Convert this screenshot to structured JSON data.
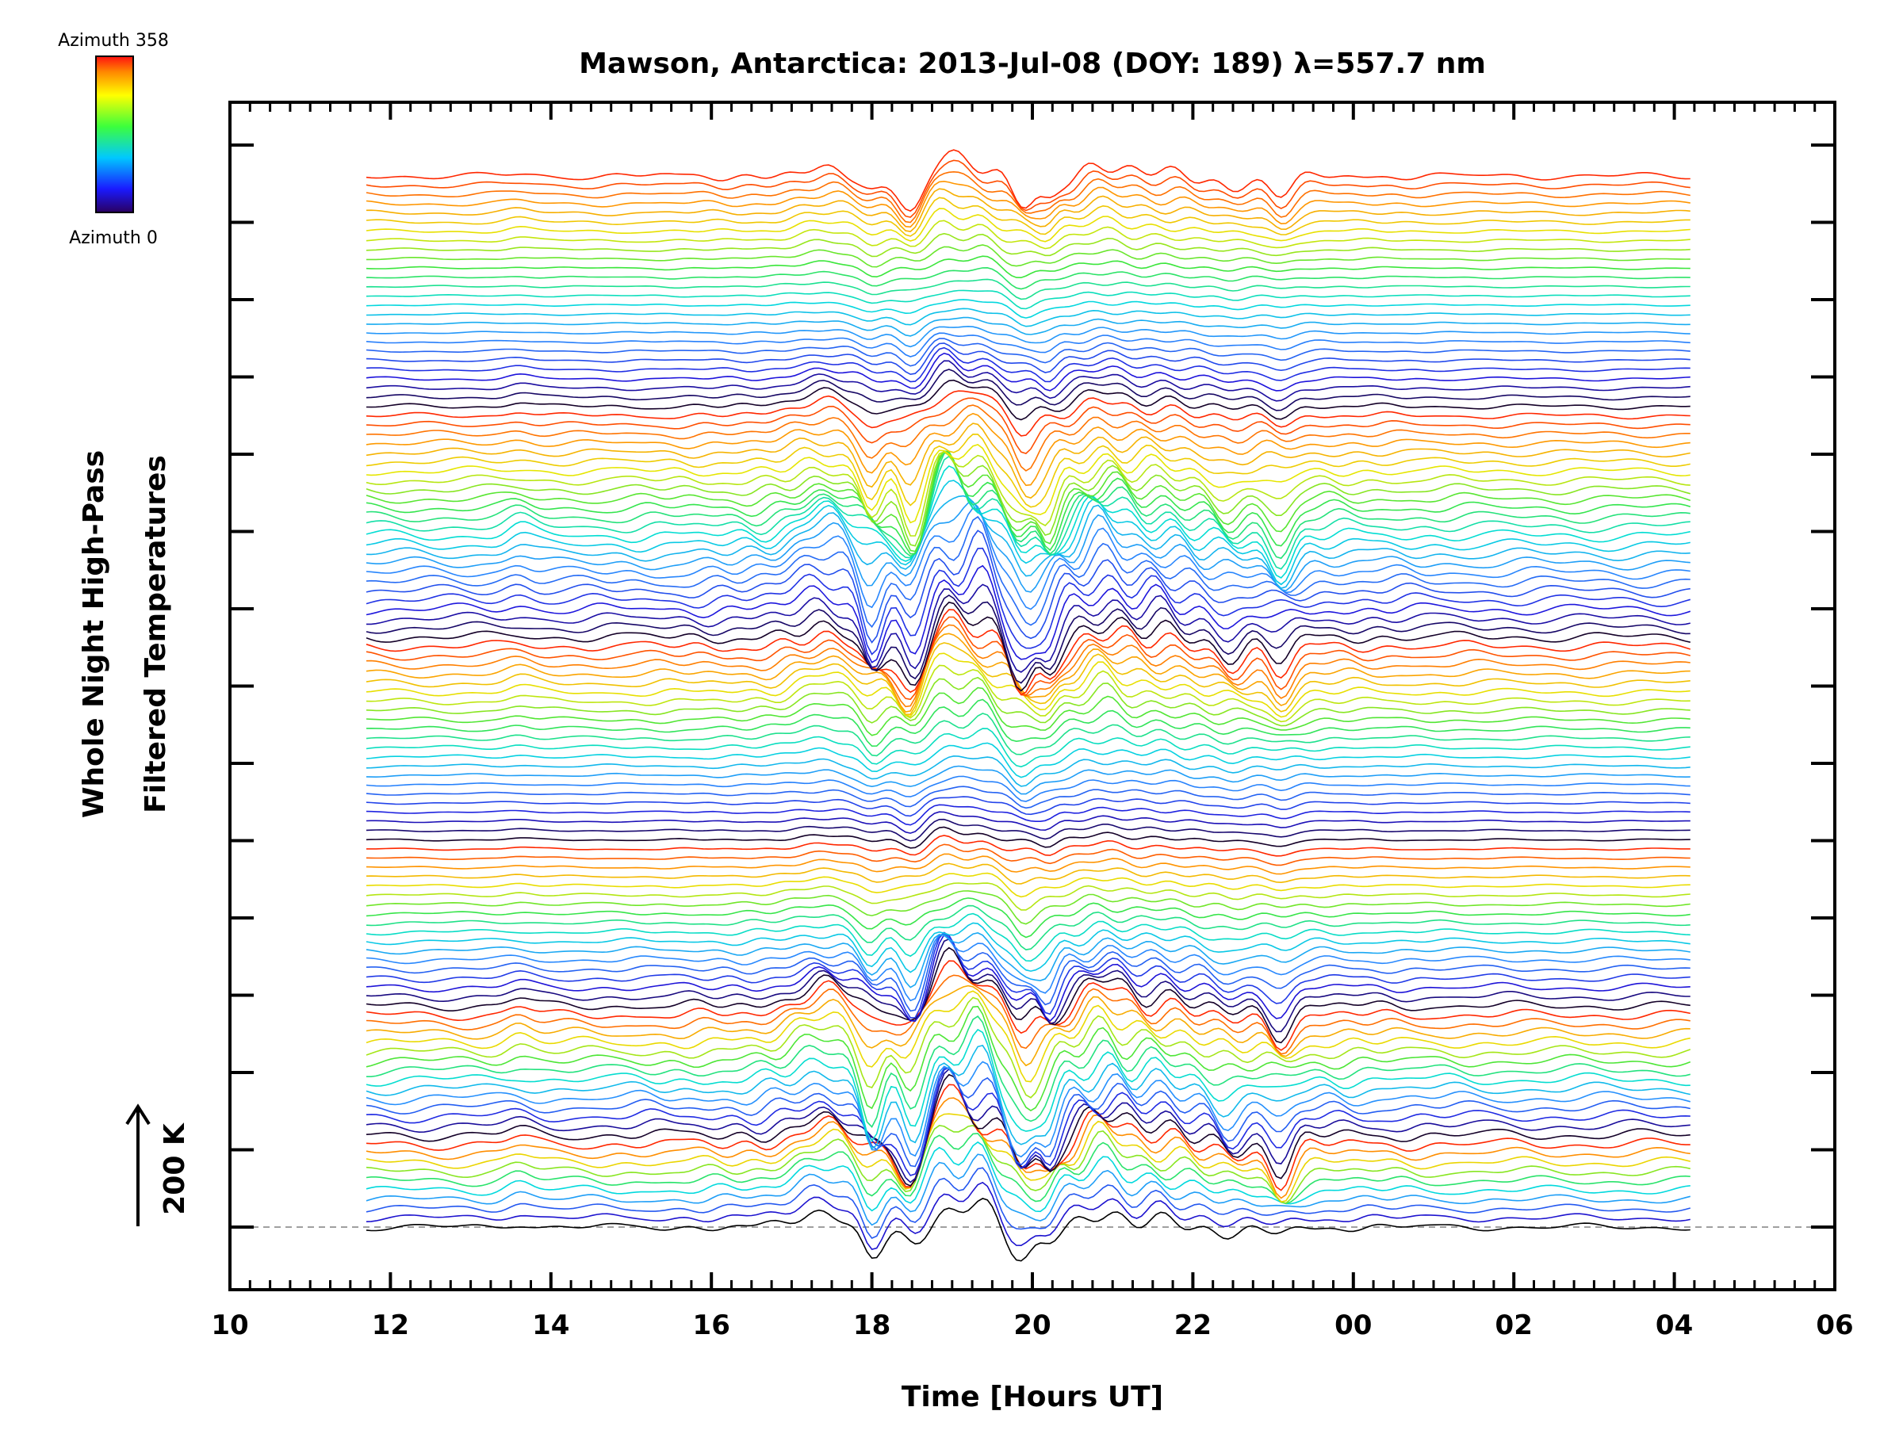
{
  "chart_data": {
    "type": "line",
    "title": "Mawson, Antarctica: 2013-Jul-08 (DOY: 189) λ=557.7 nm",
    "xlabel": "Time [Hours UT]",
    "ylabel_line1": "Whole Night High-Pass",
    "ylabel_line2": "Filtered Temperatures",
    "x_ticks": [
      "10",
      "12",
      "14",
      "16",
      "18",
      "20",
      "22",
      "00",
      "02",
      "04",
      "06"
    ],
    "xlim_hours": [
      10,
      30
    ],
    "data_start_hour": 11.7,
    "data_end_hour": 28.25,
    "scale_bar_label": "200 K",
    "colorbar": {
      "top_label": "Azimuth 358",
      "bottom_label": "Azimuth 0",
      "colormap": "rainbow (blue → cyan → green → yellow → red)"
    },
    "series_description": "Stacked, vertically offset high-pass filtered temperature traces, one per sky sector, colored by azimuth",
    "series_count": 115,
    "colors": {
      "axis": "#000000",
      "baseline": "#a0a0a0",
      "background": "#ffffff"
    }
  }
}
